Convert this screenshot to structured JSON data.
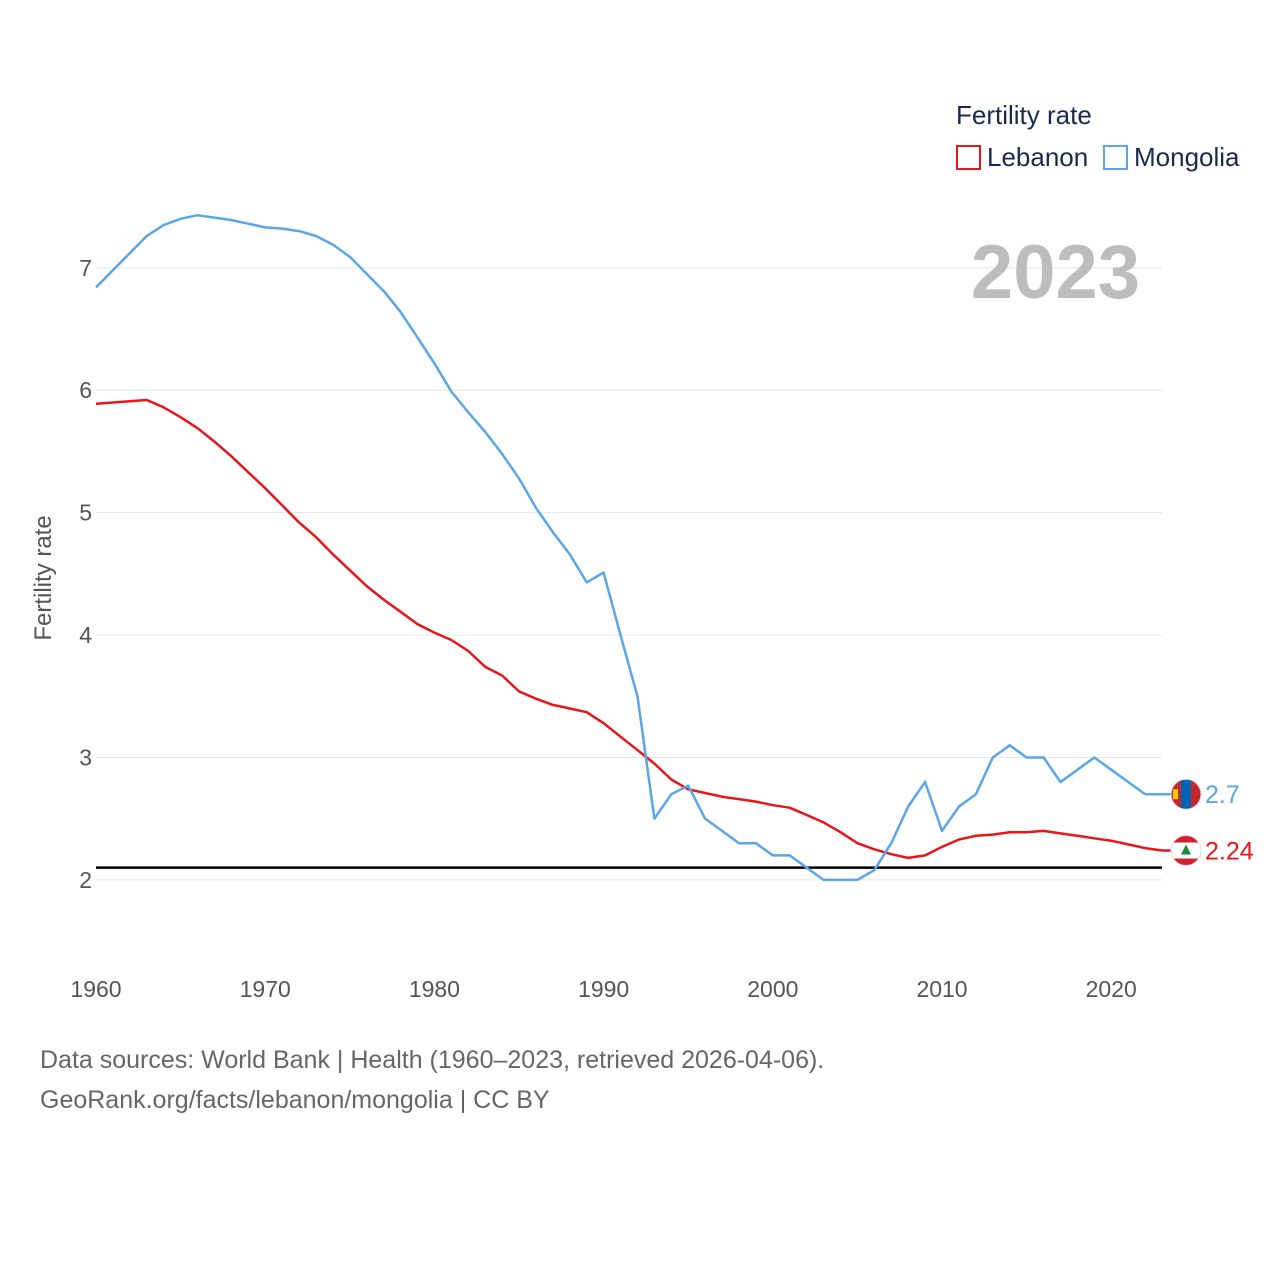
{
  "chart_data": {
    "type": "line",
    "x": [
      1960,
      1961,
      1962,
      1963,
      1964,
      1965,
      1966,
      1967,
      1968,
      1969,
      1970,
      1971,
      1972,
      1973,
      1974,
      1975,
      1976,
      1977,
      1978,
      1979,
      1980,
      1981,
      1982,
      1983,
      1984,
      1985,
      1986,
      1987,
      1988,
      1989,
      1990,
      1991,
      1992,
      1993,
      1994,
      1995,
      1996,
      1997,
      1998,
      1999,
      2000,
      2001,
      2002,
      2003,
      2004,
      2005,
      2006,
      2007,
      2008,
      2009,
      2010,
      2011,
      2012,
      2013,
      2014,
      2015,
      2016,
      2017,
      2018,
      2019,
      2020,
      2021,
      2022,
      2023
    ],
    "series": [
      {
        "name": "Lebanon",
        "color": "#e8161b",
        "values": [
          5.89,
          5.9,
          5.91,
          5.92,
          5.86,
          5.78,
          5.69,
          5.58,
          5.46,
          5.33,
          5.2,
          5.06,
          4.92,
          4.8,
          4.66,
          4.53,
          4.4,
          4.29,
          4.19,
          4.09,
          4.02,
          3.96,
          3.87,
          3.74,
          3.67,
          3.54,
          3.48,
          3.43,
          3.4,
          3.37,
          3.28,
          3.17,
          3.06,
          2.95,
          2.82,
          2.74,
          2.71,
          2.68,
          2.66,
          2.64,
          2.61,
          2.59,
          2.53,
          2.47,
          2.39,
          2.3,
          2.25,
          2.21,
          2.18,
          2.2,
          2.27,
          2.33,
          2.36,
          2.37,
          2.39,
          2.39,
          2.4,
          2.38,
          2.36,
          2.34,
          2.32,
          2.29,
          2.26,
          2.24
        ],
        "end_label": "2.24"
      },
      {
        "name": "Mongolia",
        "color": "#5ba6e6",
        "values": [
          6.84,
          6.98,
          7.12,
          7.26,
          7.35,
          7.4,
          7.43,
          7.41,
          7.39,
          7.36,
          7.33,
          7.32,
          7.3,
          7.26,
          7.19,
          7.09,
          6.95,
          6.81,
          6.64,
          6.43,
          6.22,
          5.99,
          5.82,
          5.66,
          5.48,
          5.28,
          5.04,
          4.84,
          4.66,
          4.43,
          4.51,
          4.0,
          3.5,
          2.5,
          2.7,
          2.77,
          2.5,
          2.4,
          2.3,
          2.3,
          2.2,
          2.2,
          2.1,
          2.0,
          2.0,
          2.0,
          2.08,
          2.3,
          2.6,
          2.8,
          2.4,
          2.6,
          2.7,
          3.0,
          3.1,
          3.0,
          3.0,
          2.8,
          2.9,
          3.0,
          2.9,
          2.8,
          2.7,
          2.7
        ],
        "end_label": "2.7"
      }
    ],
    "reference_line": 2.1,
    "ylabel": "Fertility rate",
    "xlabel": "",
    "xlim": [
      1960,
      2023
    ],
    "ylim": [
      1.55,
      7.75
    ],
    "x_ticks": [
      "1960",
      "1970",
      "1980",
      "1990",
      "2000",
      "2010",
      "2020"
    ],
    "y_ticks": [
      "2",
      "3",
      "4",
      "5",
      "6",
      "7"
    ],
    "grid": true,
    "legend_title": "Fertility rate",
    "legend_position": "top-right",
    "year_label": "2023"
  },
  "source": {
    "line1": "Data sources: World Bank | Health (1960–2023, retrieved 2026-04-06).",
    "line2": "GeoRank.org/facts/lebanon/mongolia | CC BY"
  }
}
